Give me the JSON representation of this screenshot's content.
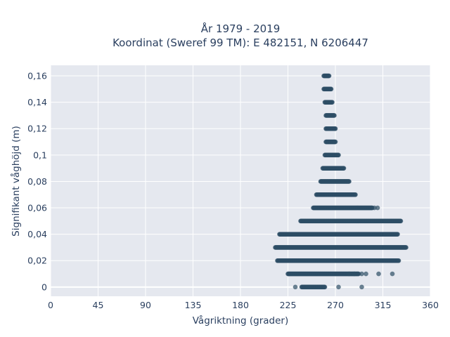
{
  "chart_data": {
    "type": "scatter",
    "title_line1": "År 1979 - 2019",
    "title_line2": "Koordinat (Sweref 99 TM): E 482151, N 6206447",
    "xlabel": "Vågriktning (grader)",
    "ylabel": "Signifikant våghöjd (m)",
    "xlim": [
      0,
      360
    ],
    "ylim": [
      -0.007,
      0.168
    ],
    "x_ticks": [
      0,
      45,
      90,
      135,
      180,
      225,
      270,
      315,
      360
    ],
    "x_tick_labels": [
      "0",
      "45",
      "90",
      "135",
      "180",
      "225",
      "270",
      "315",
      "360"
    ],
    "y_ticks": [
      0,
      0.02,
      0.04,
      0.06,
      0.08,
      0.1,
      0.12,
      0.14,
      0.16
    ],
    "y_tick_labels": [
      "0",
      "0,02",
      "0,04",
      "0,06",
      "0,08",
      "0,1",
      "0,12",
      "0,14",
      "0,16"
    ],
    "grid": true,
    "colors": {
      "background": "#e5e8ef",
      "grid": "#ffffff",
      "marker": "#2d4e65",
      "text": "#2a3f5f"
    },
    "bands": [
      {
        "y": 0.16,
        "x_min": 259,
        "x_max": 264
      },
      {
        "y": 0.15,
        "x_min": 259,
        "x_max": 266
      },
      {
        "y": 0.14,
        "x_min": 260,
        "x_max": 267
      },
      {
        "y": 0.13,
        "x_min": 261,
        "x_max": 269
      },
      {
        "y": 0.12,
        "x_min": 261,
        "x_max": 270
      },
      {
        "y": 0.11,
        "x_min": 261,
        "x_max": 270
      },
      {
        "y": 0.1,
        "x_min": 260,
        "x_max": 273
      },
      {
        "y": 0.09,
        "x_min": 258,
        "x_max": 278
      },
      {
        "y": 0.08,
        "x_min": 256,
        "x_max": 283
      },
      {
        "y": 0.07,
        "x_min": 252,
        "x_max": 289
      },
      {
        "y": 0.06,
        "x_min": 249,
        "x_max": 305
      },
      {
        "y": 0.05,
        "x_min": 237,
        "x_max": 332
      },
      {
        "y": 0.04,
        "x_min": 217,
        "x_max": 329
      },
      {
        "y": 0.03,
        "x_min": 213,
        "x_max": 337
      },
      {
        "y": 0.02,
        "x_min": 215,
        "x_max": 330
      },
      {
        "y": 0.01,
        "x_min": 225,
        "x_max": 292
      },
      {
        "y": 0.0,
        "x_min": 238,
        "x_max": 260
      }
    ],
    "outliers": [
      {
        "x": 307,
        "y": 0.06
      },
      {
        "x": 310,
        "y": 0.06
      },
      {
        "x": 283,
        "y": 0.01
      },
      {
        "x": 288,
        "y": 0.01
      },
      {
        "x": 295,
        "y": 0.01
      },
      {
        "x": 299,
        "y": 0.01
      },
      {
        "x": 311,
        "y": 0.01
      },
      {
        "x": 324,
        "y": 0.01
      },
      {
        "x": 232,
        "y": 0.0
      },
      {
        "x": 273,
        "y": 0.0
      },
      {
        "x": 295,
        "y": 0.0
      }
    ]
  }
}
